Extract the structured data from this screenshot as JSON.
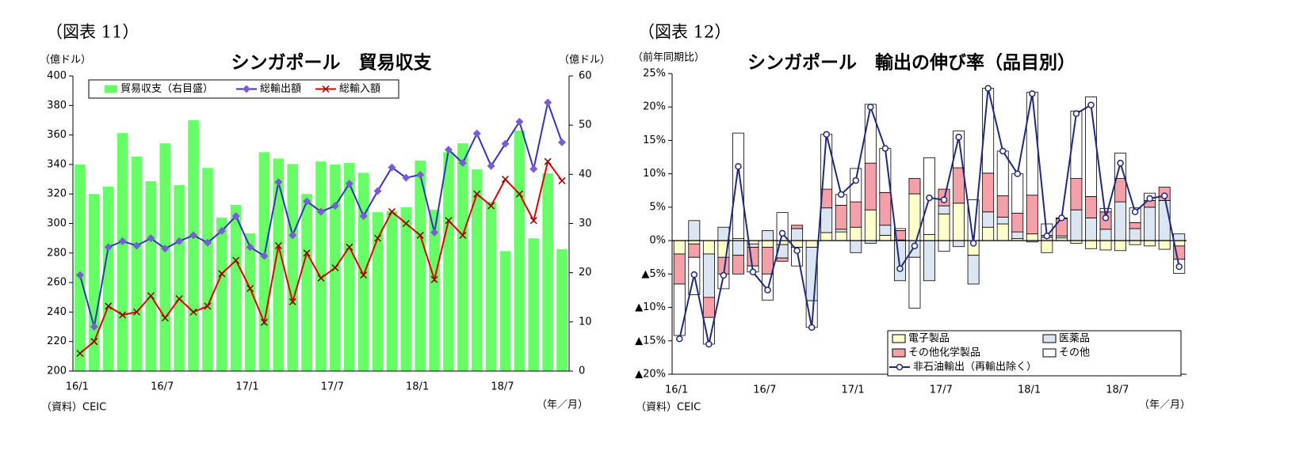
{
  "chart_data": [
    {
      "type": "combo",
      "figure_label": "（図表 11）",
      "title": "シンガポール　貿易収支",
      "y_label": "（億ドル）",
      "y2_label": "（億ドル）",
      "source": "（資料）CEIC",
      "x_unit": "（年／月）",
      "categories": [
        "16/1",
        null,
        null,
        null,
        null,
        null,
        "16/7",
        null,
        null,
        null,
        null,
        null,
        "17/1",
        null,
        null,
        null,
        null,
        null,
        "17/7",
        null,
        null,
        null,
        null,
        null,
        "18/1",
        null,
        null,
        null,
        null,
        null,
        "18/7",
        null,
        null,
        null,
        null
      ],
      "ylim": [
        200,
        400
      ],
      "yticks": [
        200,
        220,
        240,
        260,
        280,
        300,
        320,
        340,
        360,
        380,
        400
      ],
      "y2lim": [
        0,
        60
      ],
      "y2ticks": [
        0,
        10,
        20,
        30,
        40,
        50,
        60
      ],
      "series": [
        {
          "name": "貿易収支（右目盛）",
          "type": "bar",
          "axis": "y2",
          "color": "#66ff66",
          "values": [
            42,
            36,
            37.5,
            48.4,
            43.6,
            38.6,
            46.3,
            37.8,
            51,
            41.3,
            31.2,
            33.8,
            28,
            44.5,
            43.2,
            42.1,
            36,
            42.6,
            42,
            42.3,
            40.3,
            32.3,
            32.5,
            33.3,
            42.8,
            32.8,
            44.5,
            46.3,
            41,
            34.4,
            24.4,
            48.9,
            27,
            40.2,
            24.8
          ]
        },
        {
          "name": "総輸出額",
          "type": "line",
          "marker": "diamond",
          "color": "#3333bb",
          "marker_color": "#7b5bd6",
          "values": [
            265,
            230,
            284,
            288,
            285,
            290,
            283,
            288,
            292,
            287,
            295,
            305,
            284,
            278,
            328,
            292,
            315,
            308,
            312,
            327,
            305,
            322,
            338,
            331,
            333,
            294,
            350,
            341,
            361,
            339,
            354,
            369,
            337,
            382,
            355
          ]
        },
        {
          "name": "総輸入額",
          "type": "line",
          "marker": "x",
          "color": "#e00000",
          "marker_color": "#8b0000",
          "values": [
            212,
            220,
            244,
            238,
            240,
            251,
            236,
            249,
            240,
            244,
            266,
            275,
            256,
            233,
            285,
            247,
            280,
            263,
            270,
            284,
            265,
            290,
            308,
            300,
            292,
            262,
            302,
            292,
            320,
            312,
            330,
            320,
            302,
            342,
            329
          ]
        }
      ]
    },
    {
      "type": "stacked",
      "figure_label": "（図表 12）",
      "title": "シンガポール　輸出の伸び率（品目別）",
      "y_label": "（前年同期比）",
      "source": "（資料）CEIC",
      "x_unit": "（年／月）",
      "categories": [
        "16/1",
        null,
        null,
        null,
        null,
        null,
        "16/7",
        null,
        null,
        null,
        null,
        null,
        "17/1",
        null,
        null,
        null,
        null,
        null,
        "17/7",
        null,
        null,
        null,
        null,
        null,
        "18/1",
        null,
        null,
        null,
        null,
        null,
        "18/7",
        null,
        null,
        null,
        null
      ],
      "ylim": [
        -20,
        25
      ],
      "yticks": [
        {
          "value": -20,
          "label": "▲20%"
        },
        {
          "value": -15,
          "label": "▲15%"
        },
        {
          "value": -10,
          "label": "▲10%"
        },
        {
          "value": -5,
          "label": "▲5%"
        },
        {
          "value": 0,
          "label": "0%"
        },
        {
          "value": 5,
          "label": "5%"
        },
        {
          "value": 10,
          "label": "10%"
        },
        {
          "value": 15,
          "label": "15%"
        },
        {
          "value": 20,
          "label": "20%"
        },
        {
          "value": 25,
          "label": "25%"
        }
      ],
      "series": [
        {
          "name": "電子製品",
          "type": "bar",
          "color": "#ffffcc",
          "values": [
            -2,
            -0.5,
            -2,
            -2.5,
            0.3,
            -0.5,
            -1,
            -0.6,
            -1,
            -1,
            1.2,
            1.3,
            2,
            4.6,
            0.8,
            0.1,
            7,
            0.9,
            4,
            5.6,
            -2.2,
            2,
            2.5,
            0.3,
            1,
            -1.8,
            0.4,
            -0.4,
            -1.2,
            -1.4,
            -1.5,
            -0.6,
            -0.8,
            -1.3,
            -0.8
          ]
        },
        {
          "name": "医薬品",
          "type": "bar",
          "color": "#dce6f2",
          "values": [
            0,
            3,
            -6.5,
            2,
            -2.2,
            -0.5,
            1.5,
            -2,
            1.8,
            -8,
            3.7,
            0.4,
            -1.8,
            -0.4,
            1.5,
            -6,
            -2.5,
            -6,
            1.2,
            -0.9,
            -4.3,
            2.3,
            1,
            1,
            -0.2,
            0.5,
            0.3,
            4.6,
            3.4,
            1.7,
            5.8,
            1.8,
            5,
            6,
            1
          ]
        },
        {
          "name": "その他化学製品",
          "type": "bar",
          "color": "#f4a0a8",
          "values": [
            -4.5,
            -2,
            -3,
            -2.5,
            -2.8,
            -2.8,
            -4,
            -0.5,
            0.5,
            0,
            2.8,
            3.6,
            3.8,
            7,
            4.9,
            1.4,
            2.3,
            0,
            2.5,
            5.3,
            0,
            5.8,
            3.2,
            2.8,
            5.8,
            0.3,
            2.6,
            4.7,
            3.2,
            2.6,
            3.5,
            0.9,
            1,
            2,
            -2
          ]
        },
        {
          "name": "その他",
          "type": "bar",
          "color": "#ffffff",
          "values": [
            -7.7,
            -5.6,
            -4,
            -2.2,
            15.8,
            -0.9,
            -3.9,
            4.2,
            -2.8,
            -4,
            8.2,
            1.6,
            5,
            8.8,
            6.6,
            0.3,
            -7.6,
            11.5,
            -1.6,
            5.5,
            6.1,
            12.7,
            6.7,
            5.9,
            15.4,
            1.7,
            0.1,
            10.1,
            14.9,
            0.5,
            3.8,
            2.2,
            1.1,
            0,
            -2.1
          ]
        },
        {
          "name": "非石油輸出（再輸出除く）",
          "type": "line",
          "color": "#1f2a7a",
          "values": [
            -14.7,
            -5.1,
            -15.5,
            -5.2,
            11.1,
            -4.7,
            -7.4,
            1.1,
            -1.5,
            -13,
            15.9,
            6.9,
            9,
            20,
            13.8,
            -4.2,
            -0.8,
            6.4,
            6.1,
            15.5,
            -0.4,
            22.8,
            13.4,
            10,
            22,
            0.7,
            3.4,
            19,
            20.3,
            3.4,
            11.6,
            4.3,
            6.3,
            6.7,
            -3.9
          ]
        }
      ]
    }
  ]
}
